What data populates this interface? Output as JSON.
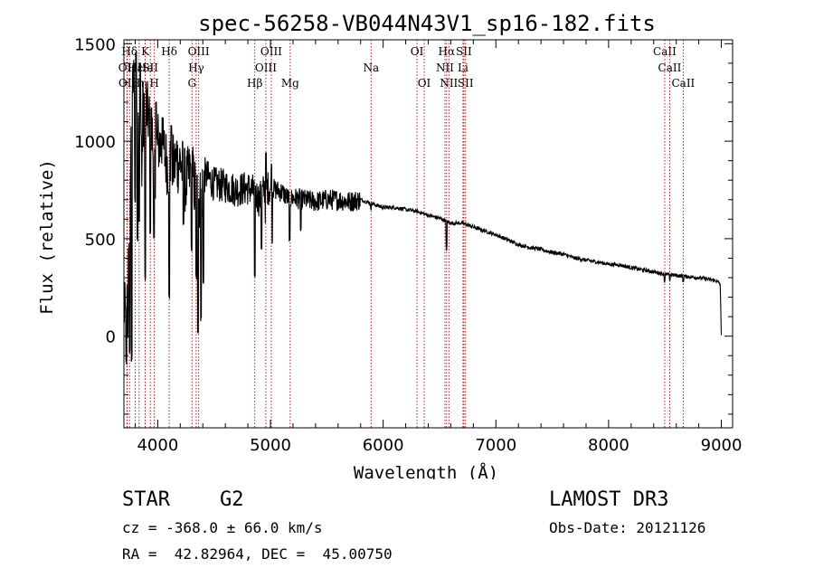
{
  "chart_data": {
    "type": "line",
    "title": "spec-56258-VB044N43V1_sp16-182.fits",
    "xlabel": "Wavelength (Å)",
    "ylabel": "Flux (relative)",
    "xlim": [
      3700,
      9100
    ],
    "ylim": [
      -470,
      1520
    ],
    "xticks": [
      4000,
      5000,
      6000,
      7000,
      8000,
      9000
    ],
    "yticks": [
      0,
      500,
      1000,
      1500
    ],
    "line_color": "#000000",
    "marker_color": "#c00000",
    "series": [
      {
        "name": "flux",
        "anchors": [
          [
            3700,
            150
          ],
          [
            3720,
            60
          ],
          [
            3740,
            350
          ],
          [
            3760,
            900
          ],
          [
            3780,
            1350
          ],
          [
            3800,
            1180
          ],
          [
            3830,
            1240
          ],
          [
            3860,
            920
          ],
          [
            3890,
            1180
          ],
          [
            3920,
            1120
          ],
          [
            3950,
            1040
          ],
          [
            3970,
            820
          ],
          [
            4000,
            1000
          ],
          [
            4050,
            960
          ],
          [
            4100,
            850
          ],
          [
            4150,
            880
          ],
          [
            4200,
            900
          ],
          [
            4250,
            780
          ],
          [
            4300,
            860
          ],
          [
            4340,
            720
          ],
          [
            4380,
            700
          ],
          [
            4420,
            830
          ],
          [
            4500,
            780
          ],
          [
            4600,
            770
          ],
          [
            4700,
            750
          ],
          [
            4800,
            760
          ],
          [
            4860,
            740
          ],
          [
            4900,
            700
          ],
          [
            4950,
            760
          ],
          [
            5000,
            760
          ],
          [
            5100,
            740
          ],
          [
            5170,
            700
          ],
          [
            5200,
            710
          ],
          [
            5300,
            700
          ],
          [
            5400,
            690
          ],
          [
            5500,
            700
          ],
          [
            5600,
            700
          ],
          [
            5700,
            690
          ],
          [
            5800,
            700
          ],
          [
            5900,
            680
          ],
          [
            6000,
            660
          ],
          [
            6100,
            660
          ],
          [
            6200,
            650
          ],
          [
            6300,
            640
          ],
          [
            6400,
            620
          ],
          [
            6500,
            605
          ],
          [
            6563,
            590
          ],
          [
            6600,
            580
          ],
          [
            6700,
            580
          ],
          [
            6800,
            560
          ],
          [
            6900,
            540
          ],
          [
            7000,
            520
          ],
          [
            7100,
            495
          ],
          [
            7200,
            470
          ],
          [
            7300,
            455
          ],
          [
            7400,
            445
          ],
          [
            7500,
            430
          ],
          [
            7600,
            420
          ],
          [
            7700,
            400
          ],
          [
            7800,
            390
          ],
          [
            7900,
            380
          ],
          [
            8000,
            370
          ],
          [
            8100,
            365
          ],
          [
            8200,
            352
          ],
          [
            8300,
            340
          ],
          [
            8400,
            330
          ],
          [
            8500,
            318
          ],
          [
            8600,
            312
          ],
          [
            8700,
            305
          ],
          [
            8800,
            300
          ],
          [
            8900,
            290
          ],
          [
            8950,
            285
          ],
          [
            8990,
            270
          ],
          [
            9000,
            5
          ]
        ],
        "absorption_dips": [
          [
            3720,
            -140
          ],
          [
            3734,
            0
          ],
          [
            3750,
            -80
          ],
          [
            3770,
            -120
          ],
          [
            3798,
            700
          ],
          [
            3820,
            500
          ],
          [
            3835,
            600
          ],
          [
            3889,
            300
          ],
          [
            3934,
            540
          ],
          [
            3968,
            500
          ],
          [
            4102,
            200
          ],
          [
            4227,
            580
          ],
          [
            4300,
            450
          ],
          [
            4341,
            300
          ],
          [
            4357,
            30
          ],
          [
            4383,
            90
          ],
          [
            4405,
            280
          ],
          [
            4861,
            300
          ],
          [
            4920,
            450
          ],
          [
            4958,
            580
          ],
          [
            5015,
            480
          ],
          [
            5170,
            500
          ],
          [
            5270,
            540
          ],
          [
            5890,
            660
          ],
          [
            6563,
            450
          ],
          [
            8498,
            285
          ],
          [
            8542,
            290
          ],
          [
            8662,
            290
          ]
        ],
        "emission_spikes": [
          [
            3808,
            1450
          ],
          [
            3845,
            1400
          ],
          [
            3870,
            1300
          ],
          [
            3900,
            1250
          ],
          [
            3985,
            1200
          ],
          [
            4040,
            1120
          ],
          [
            4120,
            1080
          ],
          [
            4170,
            1000
          ],
          [
            4960,
            940
          ],
          [
            5010,
            880
          ]
        ]
      }
    ],
    "line_markers": [
      {
        "label": "Hδ",
        "x": 3750,
        "tier": 0
      },
      {
        "label": "OII",
        "x": 3727,
        "tier": 1
      },
      {
        "label": "OII",
        "x": 3729,
        "tier": 2
      },
      {
        "label": "Hε",
        "x": 3800,
        "tier": 1
      },
      {
        "label": "Hη",
        "x": 3835,
        "tier": 2
      },
      {
        "label": "K",
        "x": 3889,
        "tier": 0
      },
      {
        "label": "He",
        "x": 3889,
        "tier": 1
      },
      {
        "label": "H",
        "x": 3970,
        "tier": 2
      },
      {
        "label": "SII",
        "x": 3934,
        "tier": 1
      },
      {
        "label": "Hδ",
        "x": 4102,
        "tier": 0
      },
      {
        "label": "OIII",
        "x": 4363,
        "tier": 0
      },
      {
        "label": "Hγ",
        "x": 4341,
        "tier": 1
      },
      {
        "label": "G",
        "x": 4304,
        "tier": 2
      },
      {
        "label": "OIII",
        "x": 5007,
        "tier": 0
      },
      {
        "label": "OIII",
        "x": 4959,
        "tier": 1
      },
      {
        "label": "Hβ",
        "x": 4861,
        "tier": 2
      },
      {
        "label": "Mg",
        "x": 5175,
        "tier": 2
      },
      {
        "label": "Na",
        "x": 5893,
        "tier": 1
      },
      {
        "label": "OI",
        "x": 6300,
        "tier": 0
      },
      {
        "label": "OI",
        "x": 6364,
        "tier": 2
      },
      {
        "label": "Hα",
        "x": 6563,
        "tier": 0
      },
      {
        "label": "NII",
        "x": 6548,
        "tier": 1
      },
      {
        "label": "NII",
        "x": 6583,
        "tier": 2
      },
      {
        "label": "SII",
        "x": 6716,
        "tier": 0
      },
      {
        "label": "Li",
        "x": 6708,
        "tier": 1
      },
      {
        "label": "SII",
        "x": 6731,
        "tier": 2
      },
      {
        "label": "CaII",
        "x": 8498,
        "tier": 0
      },
      {
        "label": "CaII",
        "x": 8542,
        "tier": 1
      },
      {
        "label": "CaII",
        "x": 8662,
        "tier": 2
      }
    ]
  },
  "info": {
    "class": "STAR",
    "subclass": "G2",
    "survey": "LAMOST DR3",
    "redshift": "cz = -368.0 ± 66.0 km/s",
    "obs_date": "Obs-Date: 20121126",
    "coords": "RA =  42.82964, DEC =  45.00750"
  }
}
